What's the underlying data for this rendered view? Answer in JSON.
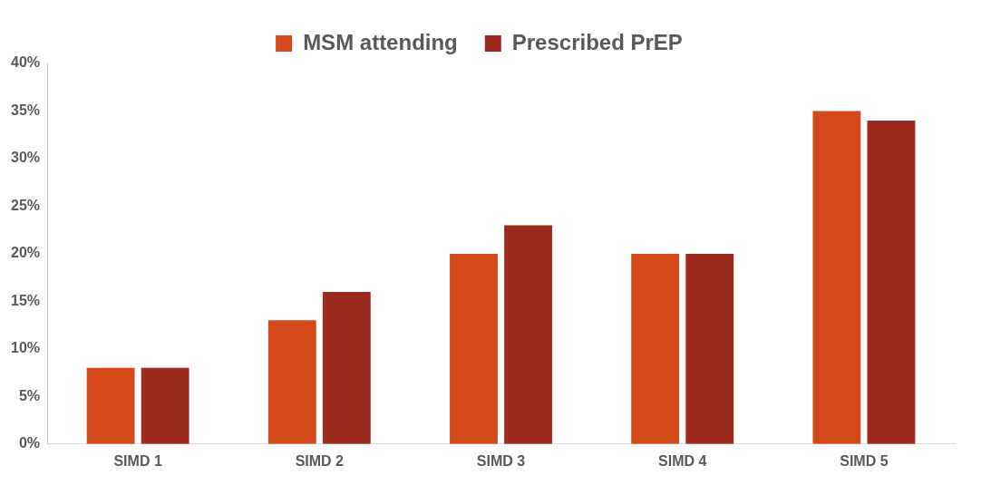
{
  "chart_data": {
    "type": "bar",
    "categories": [
      "SIMD 1",
      "SIMD 2",
      "SIMD 3",
      "SIMD 4",
      "SIMD 5"
    ],
    "series": [
      {
        "name": "MSM attending",
        "color": "#d4491a",
        "values": [
          8,
          13,
          20,
          20,
          35
        ]
      },
      {
        "name": "Prescribed PrEP",
        "color": "#9c2a1f",
        "values": [
          8,
          16,
          23,
          20,
          34
        ]
      }
    ],
    "ylim": [
      0,
      40
    ],
    "yticks": [
      {
        "value": 0,
        "label": "0%"
      },
      {
        "value": 5,
        "label": "5%"
      },
      {
        "value": 10,
        "label": "10%"
      },
      {
        "value": 15,
        "label": "15%"
      },
      {
        "value": 20,
        "label": "20%"
      },
      {
        "value": 25,
        "label": "25%"
      },
      {
        "value": 30,
        "label": "30%"
      },
      {
        "value": 35,
        "label": "35%"
      },
      {
        "value": 40,
        "label": "40%"
      }
    ],
    "grid": false,
    "legend": "top"
  }
}
